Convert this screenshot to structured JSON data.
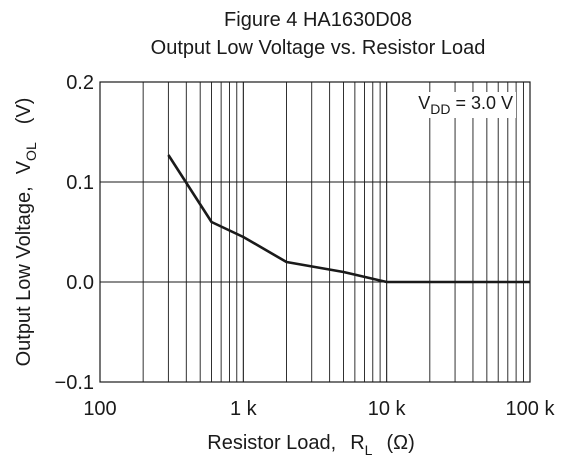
{
  "chart_data": {
    "type": "line",
    "title": "Figure 4  HA1630D08",
    "subtitle": "Output Low Voltage vs. Resistor Load",
    "xlabel": {
      "main": "Resistor Load,",
      "symbol": "R",
      "subscript": "L",
      "unit": "(Ω)"
    },
    "ylabel": {
      "main": "Output Low Voltage,",
      "symbol": "V",
      "subscript": "OL",
      "unit": "(V)"
    },
    "x_scale": "log",
    "xlim": [
      100,
      100000
    ],
    "ylim": [
      -0.1,
      0.2
    ],
    "x_ticks": [
      {
        "value": 100,
        "label": "100"
      },
      {
        "value": 1000,
        "label": "1 k"
      },
      {
        "value": 10000,
        "label": "10 k"
      },
      {
        "value": 100000,
        "label": "100 k"
      }
    ],
    "y_ticks": [
      {
        "value": 0.2,
        "label": "0.2"
      },
      {
        "value": 0.1,
        "label": "0.1"
      },
      {
        "value": 0.0,
        "label": "0.0"
      },
      {
        "value": -0.1,
        "label": "−0.1"
      }
    ],
    "grid": true,
    "annotation": {
      "prefix": "V",
      "subscript": "DD",
      "suffix": " = 3.0 V"
    },
    "series": [
      {
        "points": [
          {
            "x": 300,
            "y": 0.127
          },
          {
            "x": 600,
            "y": 0.06
          },
          {
            "x": 1000,
            "y": 0.045
          },
          {
            "x": 2000,
            "y": 0.02
          },
          {
            "x": 5000,
            "y": 0.01
          },
          {
            "x": 10000,
            "y": 0.0
          },
          {
            "x": 100000,
            "y": 0.0
          }
        ]
      }
    ]
  },
  "colors": {
    "line": "#1a1a1a",
    "grid": "#1a1a1a",
    "frame": "#1a1a1a",
    "background": "#ffffff"
  }
}
